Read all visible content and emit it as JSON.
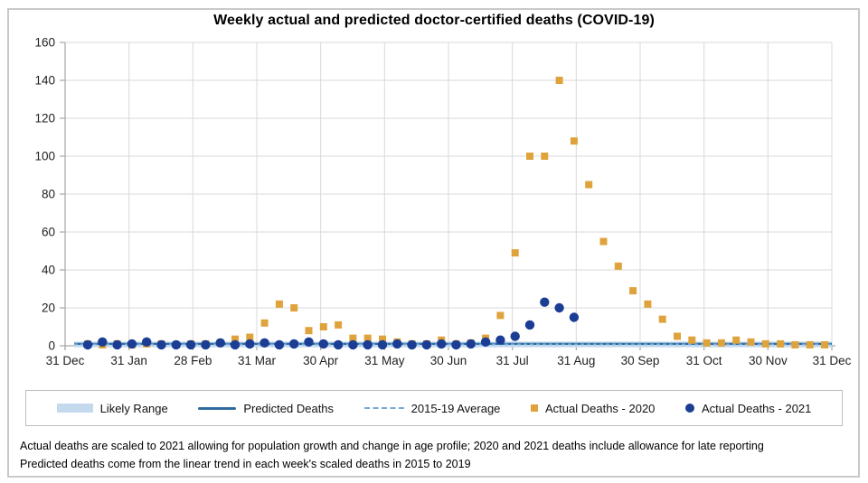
{
  "chart_data": {
    "type": "scatter",
    "title": "Weekly actual and predicted doctor-certified deaths (COVID-19)",
    "xlabel": "",
    "ylabel": "",
    "ylim": [
      0,
      160
    ],
    "y_ticks": [
      0,
      20,
      40,
      60,
      80,
      100,
      120,
      140,
      160
    ],
    "x_tick_labels": [
      "31 Dec",
      "31 Jan",
      "28 Feb",
      "31 Mar",
      "30 Apr",
      "31 May",
      "30 Jun",
      "31 Jul",
      "31 Aug",
      "30 Sep",
      "31 Oct",
      "30 Nov",
      "31 Dec"
    ],
    "grid": true,
    "legend_position": "bottom",
    "series": [
      {
        "name": "Likely Range",
        "type": "band",
        "low": -0.8,
        "high": 2.2,
        "color": "#c5d9ee"
      },
      {
        "name": "Predicted Deaths",
        "type": "line",
        "value": 1,
        "color": "#2e6a9f"
      },
      {
        "name": "2015-19 Average",
        "type": "dashed-line",
        "value": 0.8,
        "color": "#74a9d8"
      },
      {
        "name": "Actual Deaths - 2020",
        "type": "scatter-square",
        "color": "#dfa33c",
        "x_unit": "week-of-year",
        "weeks": [
          1,
          2,
          3,
          4,
          5,
          6,
          7,
          8,
          9,
          10,
          11,
          12,
          13,
          14,
          15,
          16,
          17,
          18,
          19,
          20,
          21,
          22,
          23,
          24,
          25,
          26,
          27,
          28,
          29,
          30,
          31,
          32,
          33,
          34,
          35,
          36,
          37,
          38,
          39,
          40,
          41,
          42,
          43,
          44,
          45,
          46,
          47,
          48,
          49,
          50,
          51
        ],
        "values": [
          1,
          0.5,
          1,
          0.5,
          1,
          1,
          0.5,
          1,
          1,
          1.5,
          3.5,
          4.5,
          12,
          22,
          20,
          8,
          10,
          11,
          4,
          4,
          3.5,
          2,
          1,
          1,
          3,
          1,
          1.5,
          4,
          16,
          49,
          100,
          100,
          140,
          108,
          85,
          55,
          42,
          29,
          22,
          14,
          5,
          3,
          1.5,
          1.5,
          3,
          2,
          1,
          1,
          0.5,
          0.5,
          0.5
        ]
      },
      {
        "name": "Actual Deaths - 2021",
        "type": "scatter-circle",
        "color": "#1b3e94",
        "x_unit": "week-of-year",
        "weeks": [
          1,
          2,
          3,
          4,
          5,
          6,
          7,
          8,
          9,
          10,
          11,
          12,
          13,
          14,
          15,
          16,
          17,
          18,
          19,
          20,
          21,
          22,
          23,
          24,
          25,
          26,
          27,
          28,
          29,
          30,
          31,
          32,
          33,
          34
        ],
        "values": [
          0.5,
          2,
          0.5,
          1,
          2,
          0.5,
          0.5,
          0.5,
          0.5,
          1.5,
          0.5,
          1,
          1.5,
          0.5,
          1,
          2,
          1,
          0.5,
          0.5,
          0.5,
          0.5,
          1,
          0.5,
          0.5,
          1,
          0.5,
          1,
          2,
          3,
          5,
          11,
          23,
          20,
          15
        ]
      }
    ]
  },
  "legend": {
    "items": [
      {
        "label": "Likely Range",
        "marker": "band-swatch"
      },
      {
        "label": "Predicted Deaths",
        "marker": "solid-line"
      },
      {
        "label": "2015-19 Average",
        "marker": "dashed-line"
      },
      {
        "label": "Actual Deaths - 2020",
        "marker": "orange-square"
      },
      {
        "label": "Actual Deaths - 2021",
        "marker": "blue-circle"
      }
    ]
  },
  "footnotes": {
    "line1": "Actual deaths are scaled to 2021 allowing for population growth and change in age profile; 2020 and 2021 deaths include allowance for late reporting",
    "line2": "Predicted deaths come from the linear trend in each week's scaled deaths in 2015 to 2019"
  },
  "colors": {
    "actual_2020": "#dfa33c",
    "actual_2021": "#1b3e94",
    "predicted": "#2e6a9f",
    "average_dashed": "#74a9d8",
    "likely_range_band": "#c5d9ee",
    "gridline": "#d9d9d9",
    "axis": "#a6a6a6",
    "frame_border": "#c9c9c9"
  }
}
